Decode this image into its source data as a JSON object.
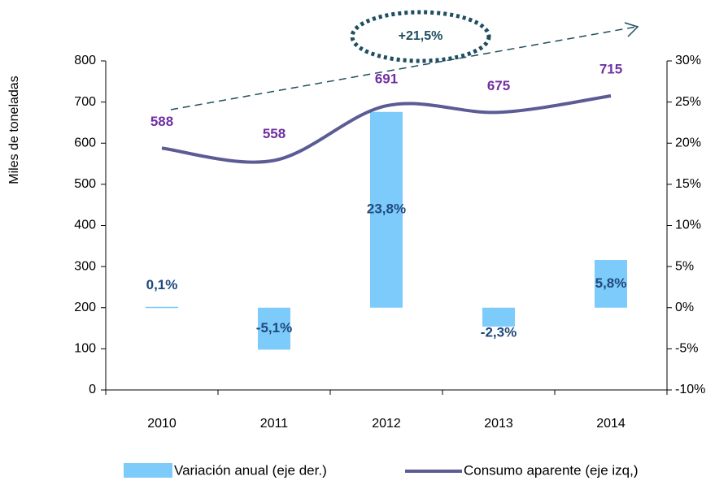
{
  "chart_data": {
    "type": "bar-line",
    "categories": [
      "2010",
      "2011",
      "2012",
      "2013",
      "2014"
    ],
    "y_label": "Miles de toneladas",
    "annotation": "+21,5%",
    "ylim": [
      0,
      800
    ],
    "yticks": [
      0,
      100,
      200,
      300,
      400,
      500,
      600,
      700,
      800
    ],
    "y2lim": [
      -10,
      30
    ],
    "y2ticks": [
      {
        "value": -10,
        "label": "-10%"
      },
      {
        "value": -5,
        "label": "-5%"
      },
      {
        "value": 0,
        "label": "0%"
      },
      {
        "value": 5,
        "label": "5%"
      },
      {
        "value": 10,
        "label": "10%"
      },
      {
        "value": 15,
        "label": "15%"
      },
      {
        "value": 20,
        "label": "20%"
      },
      {
        "value": 25,
        "label": "25%"
      },
      {
        "value": 30,
        "label": "30%"
      }
    ],
    "series": [
      {
        "name": "Variación anual (eje der.)",
        "type": "bar",
        "axis": "y2",
        "color": "#7dcbfb",
        "values": [
          0.1,
          -5.1,
          23.8,
          -2.3,
          5.8
        ],
        "value_labels": [
          "0,1%",
          "-5,1%",
          "23,8%",
          "-2,3%",
          "5,8%"
        ]
      },
      {
        "name": "Consumo aparente (eje izq,)",
        "type": "line",
        "axis": "y",
        "color": "#5b5b95",
        "values": [
          588,
          558,
          691,
          675,
          715
        ]
      }
    ]
  }
}
